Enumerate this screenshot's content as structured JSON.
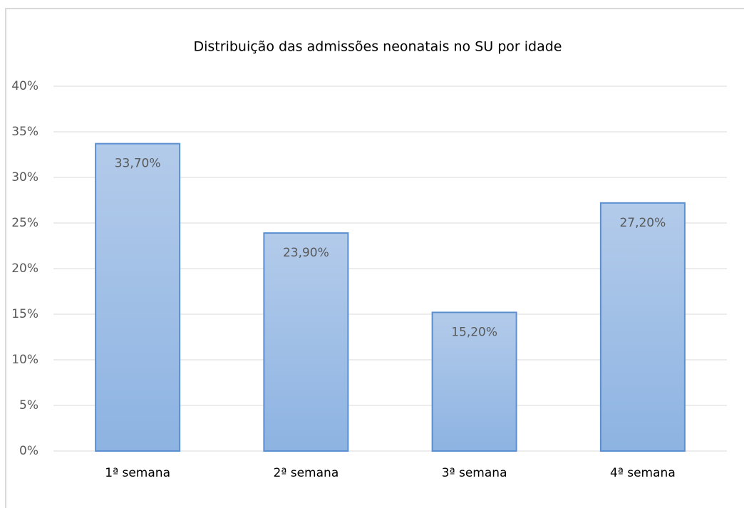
{
  "chart_data": {
    "type": "bar",
    "title": "Distribuição  das admissões neonatais no SU por idade",
    "categories": [
      "1ª semana",
      "2ª semana",
      "3ª semana",
      "4ª semana"
    ],
    "values": [
      33.7,
      23.9,
      15.2,
      27.2
    ],
    "value_labels": [
      "33,70%",
      "23,90%",
      "15,20%",
      "27,20%"
    ],
    "color": "#9dbde6",
    "ylim": [
      0,
      40
    ],
    "yticks": [
      {
        "value": 0,
        "label": "0%"
      },
      {
        "value": 5,
        "label": "5%"
      },
      {
        "value": 10,
        "label": "10%"
      },
      {
        "value": 15,
        "label": "15%"
      },
      {
        "value": 20,
        "label": "20%"
      },
      {
        "value": 25,
        "label": "25%"
      },
      {
        "value": 30,
        "label": "30%"
      },
      {
        "value": 35,
        "label": "35%"
      },
      {
        "value": 40,
        "label": "40%"
      }
    ],
    "grid": true
  }
}
